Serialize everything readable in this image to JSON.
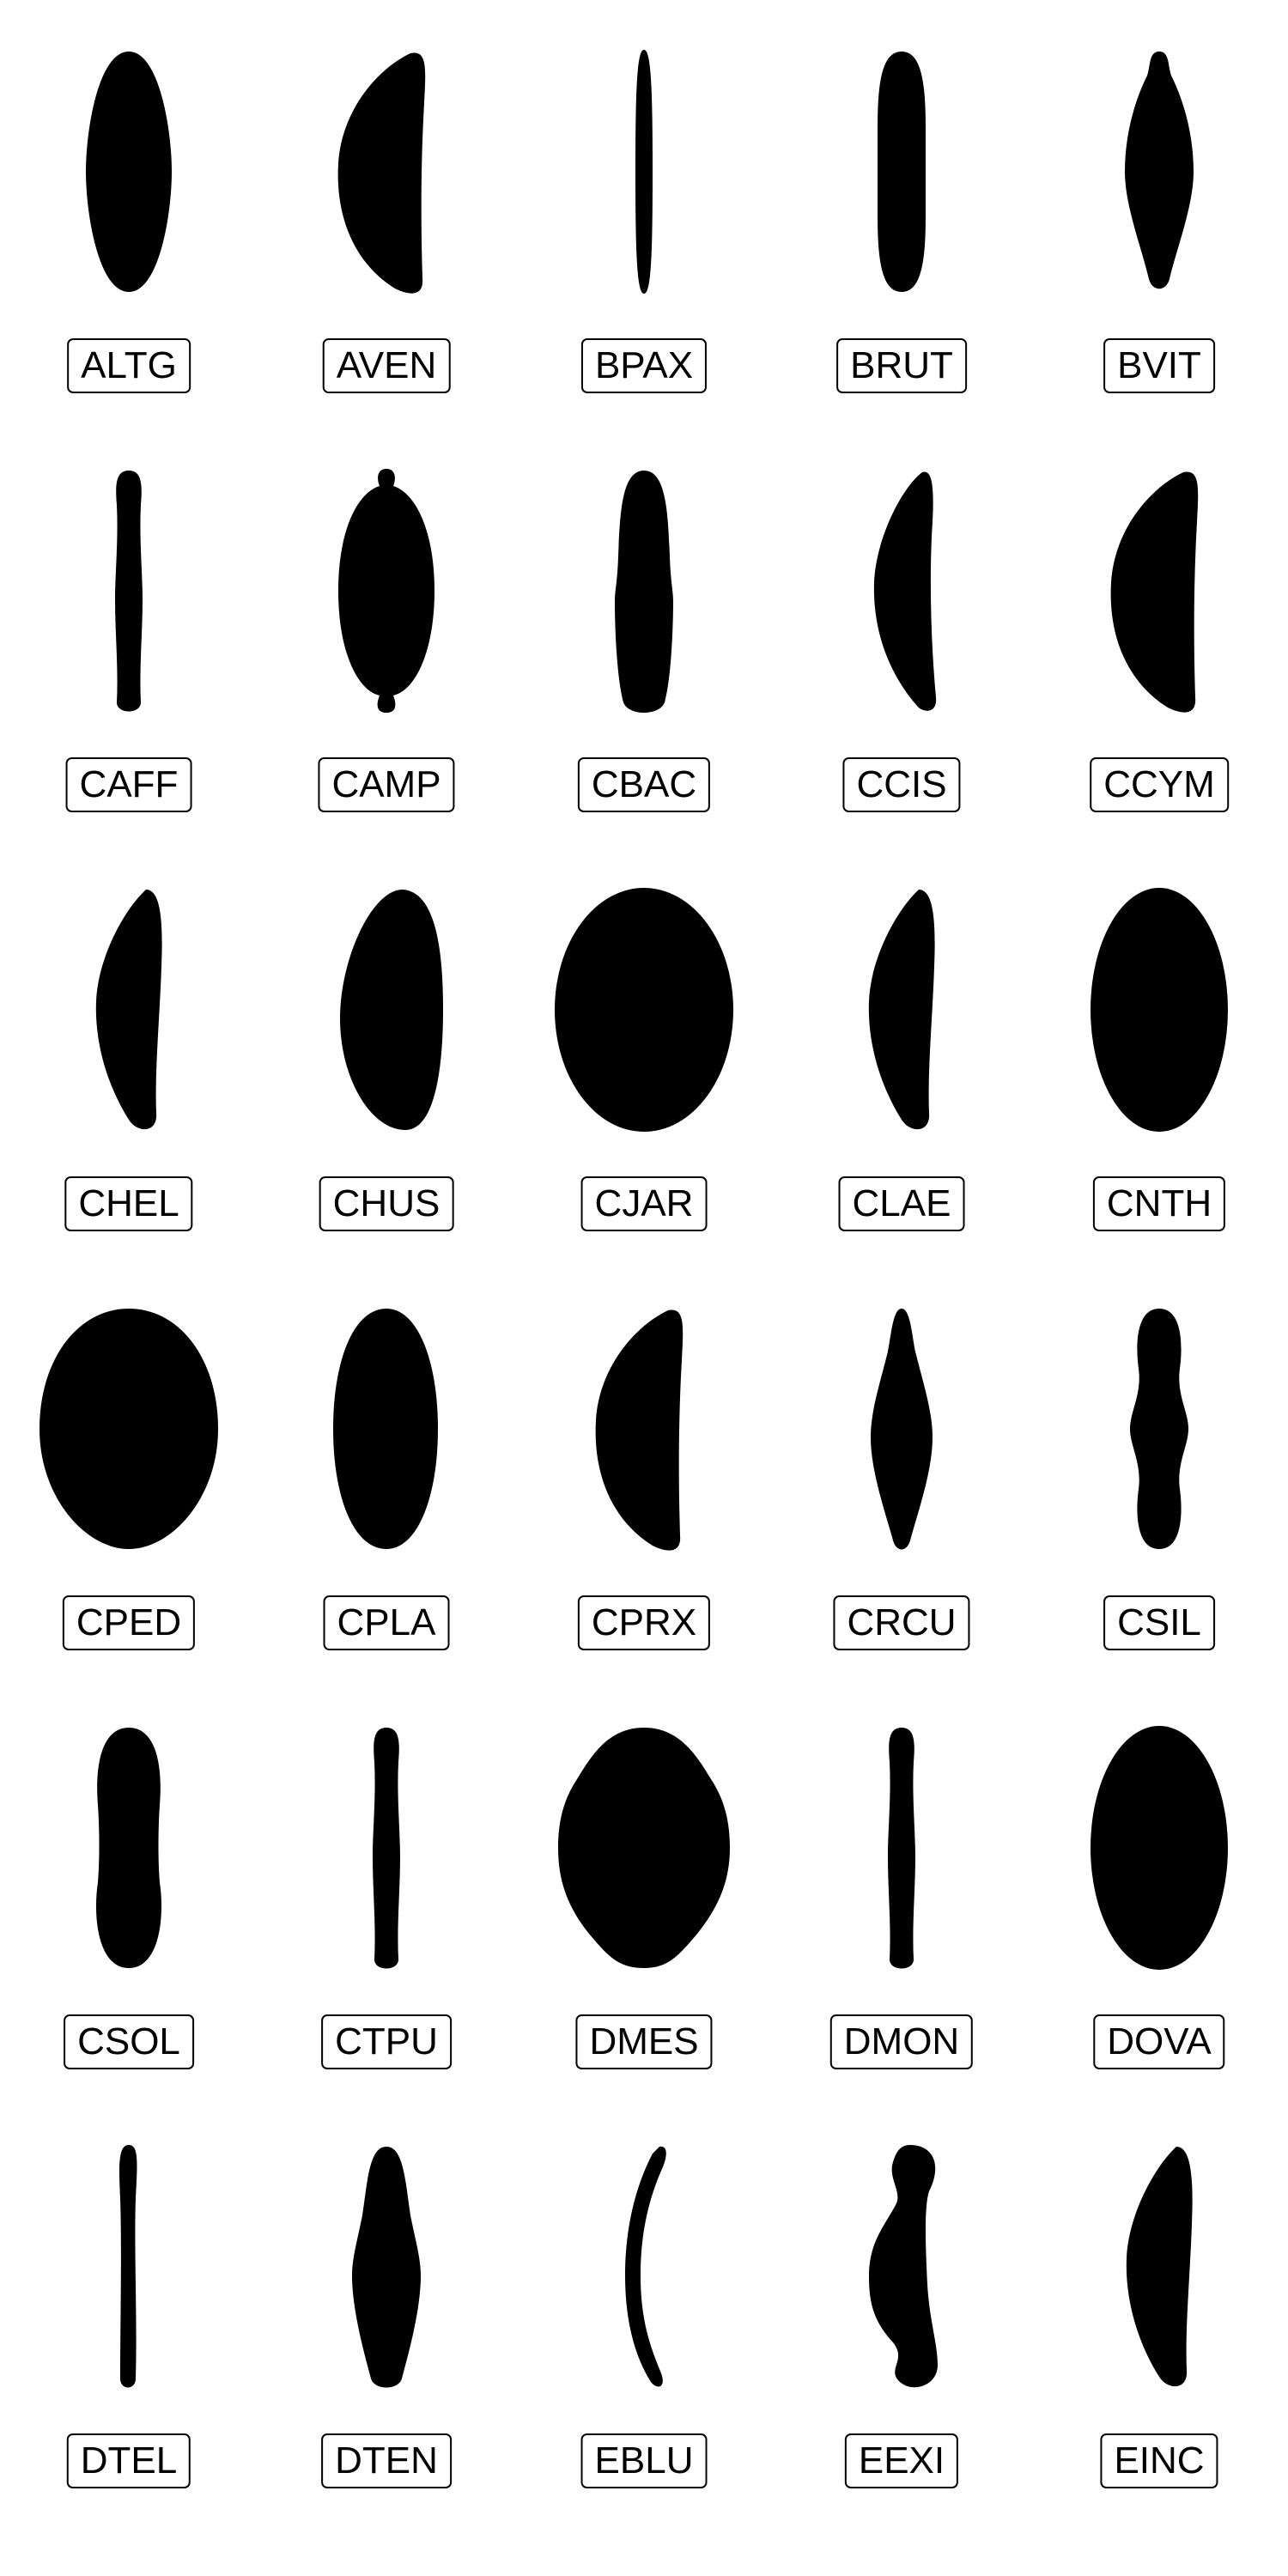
{
  "colors": {
    "background": "#ffffff",
    "silhouette": "#000000",
    "label_border": "#000000",
    "label_text": "#000000"
  },
  "items": [
    {
      "code": "ALTG",
      "shape": "spindle-wide"
    },
    {
      "code": "AVEN",
      "shape": "crescent-right"
    },
    {
      "code": "BPAX",
      "shape": "needle"
    },
    {
      "code": "BRUT",
      "shape": "rod"
    },
    {
      "code": "BVIT",
      "shape": "spindle-beaked"
    },
    {
      "code": "CAFF",
      "shape": "rod-thin"
    },
    {
      "code": "CAMP",
      "shape": "capitate-ends"
    },
    {
      "code": "CBAC",
      "shape": "rod-waisted"
    },
    {
      "code": "CCIS",
      "shape": "crescent-thin-right"
    },
    {
      "code": "CCYM",
      "shape": "crescent-right"
    },
    {
      "code": "CHEL",
      "shape": "crescent-narrow-right"
    },
    {
      "code": "CHUS",
      "shape": "half-ellipse-right"
    },
    {
      "code": "CJAR",
      "shape": "ellipse-wide"
    },
    {
      "code": "CLAE",
      "shape": "crescent-narrow-right"
    },
    {
      "code": "CNTH",
      "shape": "ellipse"
    },
    {
      "code": "CPED",
      "shape": "ellipse-round"
    },
    {
      "code": "CPLA",
      "shape": "ellipse-mid"
    },
    {
      "code": "CPRX",
      "shape": "crescent-right"
    },
    {
      "code": "CRCU",
      "shape": "lanceolate"
    },
    {
      "code": "CSIL",
      "shape": "triundulate"
    },
    {
      "code": "CSOL",
      "shape": "constricted"
    },
    {
      "code": "CTPU",
      "shape": "rod-thin"
    },
    {
      "code": "DMES",
      "shape": "lozenge-round"
    },
    {
      "code": "DMON",
      "shape": "rod-thin"
    },
    {
      "code": "DOVA",
      "shape": "ellipse"
    },
    {
      "code": "DTEL",
      "shape": "needle-wavy"
    },
    {
      "code": "DTEN",
      "shape": "spindle-narrow"
    },
    {
      "code": "EBLU",
      "shape": "arc-thin"
    },
    {
      "code": "EEXI",
      "shape": "sigmoid"
    },
    {
      "code": "EINC",
      "shape": "crescent-narrow-right"
    }
  ]
}
